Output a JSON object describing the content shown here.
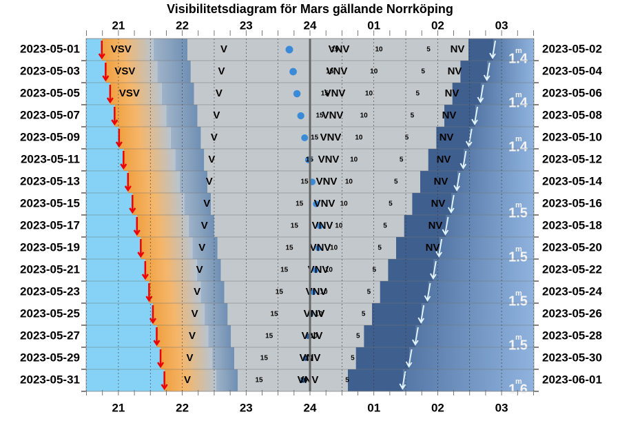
{
  "header": {
    "title": "Visibilitetsdiagram för Mars gällande Norrköping"
  },
  "hour_axis": {
    "labels": [
      "21",
      "22",
      "23",
      "24",
      "01",
      "02",
      "03"
    ],
    "values": [
      21,
      22,
      23,
      24,
      25,
      26,
      27
    ]
  },
  "magnitude_unit": "m",
  "contours": [
    15,
    10,
    5
  ],
  "rows": [
    {
      "date_left": "2023-05-01",
      "date_right": "2023-05-02",
      "sunset": 20.74,
      "sunrise": 26.87,
      "sunset_dir": "VSV",
      "west": "V",
      "north": "VNV",
      "northwest": "NV",
      "magnitude": "1.4"
    },
    {
      "date_left": "2023-05-03",
      "date_right": "2023-05-04",
      "sunset": 20.8,
      "sunrise": 26.78,
      "sunset_dir": "VSV",
      "west": "V",
      "north": "VNV",
      "northwest": "NV",
      "magnitude": null
    },
    {
      "date_left": "2023-05-05",
      "date_right": "2023-05-06",
      "sunset": 20.87,
      "sunrise": 26.68,
      "sunset_dir": "VSV",
      "west": "V",
      "north": "VNV",
      "northwest": "NV",
      "magnitude": "1.4"
    },
    {
      "date_left": "2023-05-07",
      "date_right": "2023-05-08",
      "sunset": 20.94,
      "sunrise": 26.59,
      "sunset_dir": null,
      "west": "V",
      "north": "VNV",
      "northwest": "NV",
      "magnitude": null
    },
    {
      "date_left": "2023-05-09",
      "date_right": "2023-05-10",
      "sunset": 21.01,
      "sunrise": 26.5,
      "sunset_dir": null,
      "west": "V",
      "north": "VNV",
      "northwest": "NV",
      "magnitude": "1.4"
    },
    {
      "date_left": "2023-05-11",
      "date_right": "2023-05-12",
      "sunset": 21.08,
      "sunrise": 26.41,
      "sunset_dir": null,
      "west": "V",
      "north": "VNV",
      "northwest": "NV",
      "magnitude": null
    },
    {
      "date_left": "2023-05-13",
      "date_right": "2023-05-14",
      "sunset": 21.15,
      "sunrise": 26.31,
      "sunset_dir": null,
      "west": "V",
      "north": "VNV",
      "northwest": "NV",
      "magnitude": null
    },
    {
      "date_left": "2023-05-15",
      "date_right": "2023-05-16",
      "sunset": 21.22,
      "sunrise": 26.22,
      "sunset_dir": null,
      "west": "V",
      "north": "VNV",
      "northwest": "NV",
      "magnitude": "1.5"
    },
    {
      "date_left": "2023-05-17",
      "date_right": "2023-05-18",
      "sunset": 21.29,
      "sunrise": 26.13,
      "sunset_dir": null,
      "west": "V",
      "north": "VNV",
      "northwest": "NV",
      "magnitude": null
    },
    {
      "date_left": "2023-05-19",
      "date_right": "2023-05-20",
      "sunset": 21.35,
      "sunrise": 26.03,
      "sunset_dir": null,
      "west": "V",
      "north": "VNV",
      "northwest": "NV",
      "magnitude": "1.5"
    },
    {
      "date_left": "2023-05-21",
      "date_right": "2023-05-22",
      "sunset": 21.42,
      "sunrise": 25.94,
      "sunset_dir": null,
      "west": "V",
      "north": "VNV",
      "northwest": null,
      "magnitude": null
    },
    {
      "date_left": "2023-05-23",
      "date_right": "2023-05-24",
      "sunset": 21.48,
      "sunrise": 25.85,
      "sunset_dir": null,
      "west": "V",
      "north": "VNV",
      "northwest": null,
      "magnitude": "1.5"
    },
    {
      "date_left": "2023-05-25",
      "date_right": "2023-05-26",
      "sunset": 21.54,
      "sunrise": 25.75,
      "sunset_dir": null,
      "west": "V",
      "north": "VNV",
      "northwest": null,
      "magnitude": null
    },
    {
      "date_left": "2023-05-27",
      "date_right": "2023-05-28",
      "sunset": 21.6,
      "sunrise": 25.66,
      "sunset_dir": null,
      "west": "V",
      "north": "VNV",
      "northwest": null,
      "magnitude": "1.5"
    },
    {
      "date_left": "2023-05-29",
      "date_right": "2023-05-30",
      "sunset": 21.66,
      "sunrise": 25.56,
      "sunset_dir": null,
      "west": "V",
      "north": "VNV",
      "northwest": null,
      "magnitude": null
    },
    {
      "date_left": "2023-05-31",
      "date_right": "2023-06-01",
      "sunset": 21.72,
      "sunrise": 25.46,
      "sunset_dir": null,
      "west": "V",
      "north": "VNV",
      "northwest": null,
      "magnitude": "1.6"
    }
  ]
}
